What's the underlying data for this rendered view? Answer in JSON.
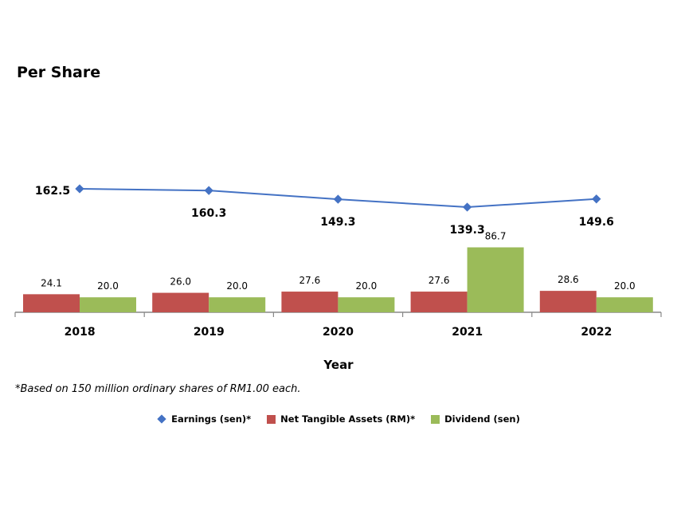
{
  "title": "Per Share",
  "footnote": "*Based on 150 million ordinary shares of RM1.00 each.",
  "legend": {
    "earnings": "Earnings (sen)*",
    "nta": "Net Tangible Assets (RM)*",
    "dividend": "Dividend (sen)"
  },
  "colors": {
    "earnings": "#4472C4",
    "nta": "#C0504D",
    "dividend": "#9BBB59"
  },
  "chart_data": {
    "type": "bar",
    "categories": [
      "2018",
      "2019",
      "2020",
      "2021",
      "2022"
    ],
    "xlabel": "Year",
    "series": [
      {
        "name": "Earnings (sen)*",
        "type": "line",
        "values": [
          162.5,
          160.3,
          149.3,
          139.3,
          149.6
        ]
      },
      {
        "name": "Net Tangible Assets (RM)*",
        "type": "bar",
        "values": [
          24.1,
          26.0,
          27.6,
          27.6,
          28.6
        ]
      },
      {
        "name": "Dividend (sen)",
        "type": "bar",
        "values": [
          20.0,
          20.0,
          20.0,
          86.7,
          20.0
        ]
      }
    ],
    "legend_position": "bottom"
  }
}
